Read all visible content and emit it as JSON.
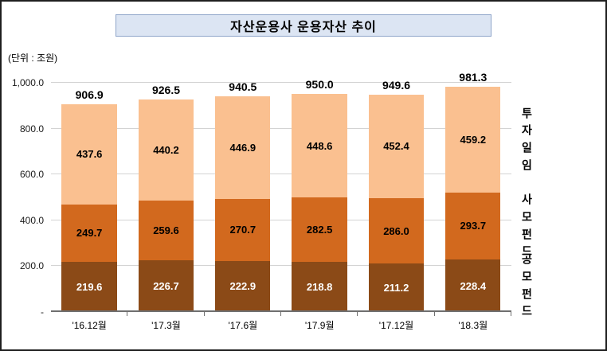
{
  "title": "자산운용사 운용자산 추이",
  "unit_label": "(단위 : 조원)",
  "chart_data": {
    "type": "bar",
    "stacked": true,
    "title": "자산운용사 운용자산 추이",
    "unit": "조원",
    "categories": [
      "'16.12월",
      "'17.3월",
      "'17.6월",
      "'17.9월",
      "'17.12월",
      "'18.3월"
    ],
    "series": [
      {
        "name": "공모 펀드",
        "color": "#8b4a17",
        "text_color": "#ffffff",
        "values": [
          219.6,
          226.7,
          222.9,
          218.8,
          211.2,
          228.4
        ]
      },
      {
        "name": "사모 펀드",
        "color": "#d2691e",
        "text_color": "#000000",
        "values": [
          249.7,
          259.6,
          270.7,
          282.5,
          286.0,
          293.7
        ]
      },
      {
        "name": "투자 일임",
        "color": "#fac090",
        "text_color": "#000000",
        "values": [
          437.6,
          440.2,
          446.9,
          448.6,
          452.4,
          459.2
        ]
      }
    ],
    "totals": [
      906.9,
      926.5,
      940.5,
      950.0,
      949.6,
      981.3
    ],
    "yticks": [
      {
        "label": "1,000.0",
        "value": 1000
      },
      {
        "label": "800.0",
        "value": 800
      },
      {
        "label": "600.0",
        "value": 600
      },
      {
        "label": "400.0",
        "value": 400
      },
      {
        "label": "200.0",
        "value": 200
      },
      {
        "label": "-",
        "value": 0
      }
    ],
    "ylim": [
      0,
      1000
    ],
    "grid": true,
    "legend_position": "right"
  }
}
